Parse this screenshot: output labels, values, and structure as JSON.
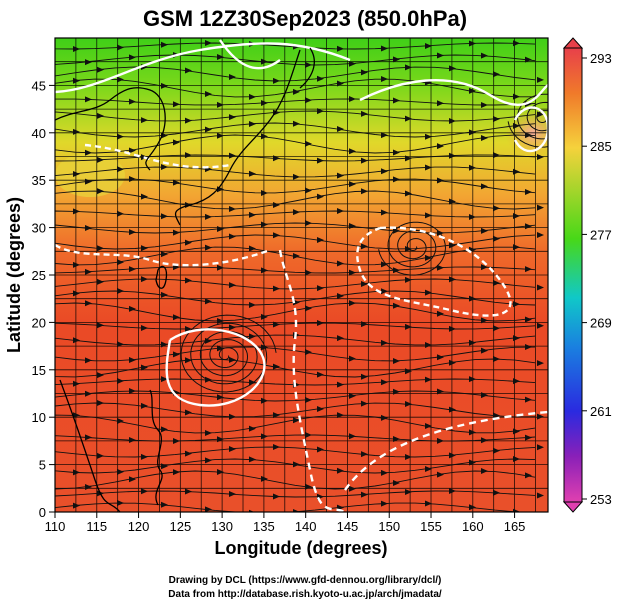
{
  "title": "GSM 12Z30Sep2023 (850.0hPa)",
  "x_axis": {
    "label": "Longitude (degrees)",
    "ticks": [
      "110",
      "115",
      "120",
      "125",
      "130",
      "135",
      "140",
      "145",
      "150",
      "155",
      "160",
      "165"
    ]
  },
  "y_axis": {
    "label": "Latitude  (degrees)",
    "ticks": [
      "0",
      "5",
      "10",
      "15",
      "20",
      "25",
      "30",
      "35",
      "40",
      "45"
    ]
  },
  "colorbar": {
    "ticks": [
      "293",
      "285",
      "277",
      "269",
      "261",
      "253"
    ],
    "colors": [
      "#e8404a",
      "#f07a2a",
      "#f5d23c",
      "#48d818",
      "#10c8c8",
      "#1a7fe0",
      "#2a2ae0",
      "#8a20b8",
      "#e040b0"
    ]
  },
  "credits": {
    "line1": "Drawing by DCL (https://www.gfd-dennou.org/library/dcl/)",
    "line2": "Data from http://database.rish.kyoto-u.ac.jp/arch/jmadata/"
  },
  "features": {
    "cyclones": [
      {
        "label": "typhoon",
        "lon": 130.5,
        "lat": 16.5
      },
      {
        "label": "low",
        "lon": 168.5,
        "lat": 41.5
      },
      {
        "label": "high",
        "lon": 153,
        "lat": 28
      }
    ]
  }
}
